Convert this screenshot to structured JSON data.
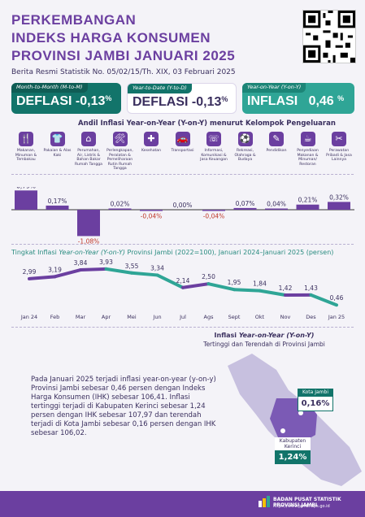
{
  "header": {
    "title_line1": "PERKEMBANGAN",
    "title_line2": "INDEKS HARGA KONSUMEN",
    "title_line3": "PROVINSI JAMBI JANUARI 2025",
    "subtitle": "Berita Resmi Statistik No. 05/02/15/Th. XIX, 03 Februari 2025"
  },
  "cards": [
    {
      "label": "Month-to-Month (M-to-M)",
      "type": "DEFLASI",
      "value": "-0,13",
      "unit": "%"
    },
    {
      "label": "Year-to-Date (Y-to-D)",
      "type": "DEFLASI",
      "value": "-0,13",
      "unit": "%"
    },
    {
      "label": "Year-on-Year (Y-on-Y)",
      "type": "INFLASI",
      "value": "0,46",
      "unit": "%"
    }
  ],
  "categories_title": "Andil Inflasi Year-on-Year (Y-on-Y) menurut Kelompok Pengeluaran",
  "categories": [
    {
      "name": "Makanan, Minuman & Tembakau",
      "icon": "food-icon",
      "value": "0,79%"
    },
    {
      "name": "Pakaian & Alas Kaki",
      "icon": "clothing-icon",
      "value": "0,17%"
    },
    {
      "name": "Perumahan, Air, Listrik & Bahan Bakar Rumah Tangga",
      "icon": "housing-icon",
      "value": "-1,08%"
    },
    {
      "name": "Perlengkapan, Peralatan & Pemeliharaan Rutin Rumah Tangga",
      "icon": "household-icon",
      "value": "0,02%"
    },
    {
      "name": "Kesehatan",
      "icon": "health-icon",
      "value": "-0,04%"
    },
    {
      "name": "Transportasi",
      "icon": "transport-icon",
      "value": "0,00%"
    },
    {
      "name": "Informasi, Komunikasi & Jasa Keuangan",
      "icon": "communication-icon",
      "value": "-0,04%"
    },
    {
      "name": "Rekreasi, Olahraga & Budaya",
      "icon": "recreation-icon",
      "value": "0,07%"
    },
    {
      "name": "Pendidikan",
      "icon": "education-icon",
      "value": "0,04%"
    },
    {
      "name": "Penyediaan Makanan & Minuman/ Restoran",
      "icon": "restaurant-icon",
      "value": "0,21%"
    },
    {
      "name": "Perawatan Pribadi & Jasa Lainnya",
      "icon": "personal-care-icon",
      "value": "0,32%"
    }
  ],
  "line_title_prefix": "Tingkat Inflasi",
  "line_title_em": "Year-on-Year (Y-on-Y)",
  "line_title_suffix": "Provinsi Jambi (2022=100), Januari 2024–Januari 2025 (persen)",
  "chart_data": [
    {
      "type": "bar",
      "title": "Andil Inflasi Year-on-Year (Y-on-Y) menurut Kelompok Pengeluaran",
      "categories": [
        "Makanan, Minuman & Tembakau",
        "Pakaian & Alas Kaki",
        "Perumahan, Air, Listrik & Bahan Bakar Rumah Tangga",
        "Perlengkapan, Peralatan & Pemeliharaan Rutin Rumah Tangga",
        "Kesehatan",
        "Transportasi",
        "Informasi, Komunikasi & Jasa Keuangan",
        "Rekreasi, Olahraga & Budaya",
        "Pendidikan",
        "Penyediaan Makanan & Minuman/ Restoran",
        "Perawatan Pribadi & Jasa Lainnya"
      ],
      "values": [
        0.79,
        0.17,
        -1.08,
        0.02,
        -0.04,
        0.0,
        -0.04,
        0.07,
        0.04,
        0.21,
        0.32
      ]
    },
    {
      "type": "line",
      "title": "Tingkat Inflasi Year-on-Year (Y-on-Y) Provinsi Jambi (2022=100), Januari 2024–Januari 2025 (persen)",
      "x": [
        "Jan 24",
        "Feb",
        "Mar",
        "Apr",
        "Mei",
        "Jun",
        "Jul",
        "Ags",
        "Sept",
        "Okt",
        "Nov",
        "Des",
        "Jan 25"
      ],
      "values": [
        2.99,
        3.19,
        3.84,
        3.93,
        3.55,
        3.34,
        2.14,
        2.5,
        1.95,
        1.84,
        1.42,
        1.43,
        0.46
      ],
      "labels": [
        "2,99",
        "3,19",
        "3,84",
        "3,93",
        "3,55",
        "3,34",
        "2,14",
        "2,50",
        "1,95",
        "1,84",
        "1,42",
        "1,43",
        "0,46"
      ]
    }
  ],
  "map": {
    "title_prefix": "Inflasi",
    "title_em": "Year-on-Year (Y-on-Y)",
    "subtitle": "Tertinggi dan Terendah di Provinsi Jambi",
    "kota_name": "Kota Jambi",
    "kota_value": "0,16%",
    "kab_name": "Kabupaten Kerinci",
    "kab_value": "1,24%"
  },
  "paragraph": "Pada Januari 2025 terjadi inflasi year-on-year (y-on-y) Provinsi Jambi sebesar 0,46 persen dengan Indeks Harga Konsumen (IHK) sebesar 106,41. Inflasi tertinggi terjadi di Kabupaten Kerinci sebesar 1,24 persen dengan IHK sebesar 107,97 dan terendah terjadi di Kota Jambi sebesar 0,16 persen dengan IHK sebesar 106,02.",
  "footer": {
    "org": "BADAN PUSAT STATISTIK PROVINSI JAMBI",
    "url": "https://www.jambi.bps.go.id"
  },
  "colors": {
    "purple": "#6b3fa0",
    "teal": "#12746a",
    "teal_light": "#2fa596"
  }
}
